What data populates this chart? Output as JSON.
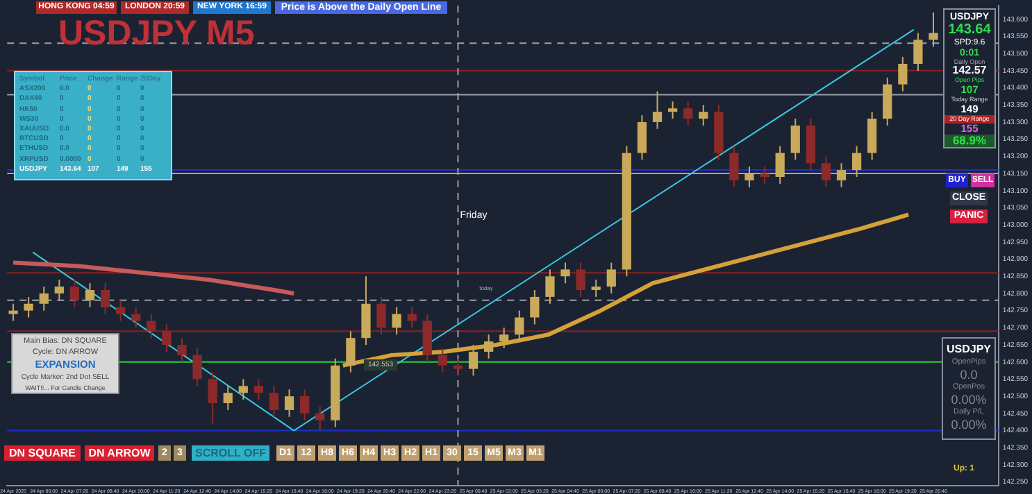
{
  "chart_data": {
    "type": "candlestick",
    "title": "USDJPY M5",
    "x": [
      "2025-04-24T04:40",
      "2025-04-24T05:20",
      "2025-04-24T06:00",
      "2025-04-24T06:40",
      "2025-04-24T07:20",
      "2025-04-24T08:00",
      "2025-04-24T08:40",
      "2025-04-24T09:20",
      "2025-04-24T10:00",
      "2025-04-24T10:40",
      "2025-04-24T11:20",
      "2025-04-24T12:00",
      "2025-04-24T12:40",
      "2025-04-24T13:20",
      "2025-04-24T14:00",
      "2025-04-24T14:40",
      "2025-04-24T15:20",
      "2025-04-24T16:00",
      "2025-04-24T16:40",
      "2025-04-24T17:20",
      "2025-04-24T18:00",
      "2025-04-24T18:40",
      "2025-04-24T19:20",
      "2025-04-24T20:00",
      "2025-04-24T20:40",
      "2025-04-24T21:20",
      "2025-04-24T22:00",
      "2025-04-24T22:40",
      "2025-04-24T23:20",
      "2025-04-25T00:00",
      "2025-04-25T00:40",
      "2025-04-25T01:20",
      "2025-04-25T02:00",
      "2025-04-25T02:40",
      "2025-04-25T03:20",
      "2025-04-25T04:00",
      "2025-04-25T04:40",
      "2025-04-25T05:20",
      "2025-04-25T06:00",
      "2025-04-25T06:40",
      "2025-04-25T07:20",
      "2025-04-25T08:00",
      "2025-04-25T08:40",
      "2025-04-25T09:20",
      "2025-04-25T10:00",
      "2025-04-25T10:40",
      "2025-04-25T11:20",
      "2025-04-25T12:00",
      "2025-04-25T12:40",
      "2025-04-25T13:20",
      "2025-04-25T14:00",
      "2025-04-25T14:40",
      "2025-04-25T15:20",
      "2025-04-25T16:00",
      "2025-04-25T16:40",
      "2025-04-25T17:20",
      "2025-04-25T18:00",
      "2025-04-25T18:40",
      "2025-04-25T19:20",
      "2025-04-25T20:00",
      "2025-04-25T20:40"
    ],
    "ohlc": [
      [
        142.74,
        142.77,
        142.72,
        142.75
      ],
      [
        142.75,
        142.79,
        142.73,
        142.77
      ],
      [
        142.77,
        142.82,
        142.75,
        142.8
      ],
      [
        142.8,
        142.84,
        142.78,
        142.82
      ],
      [
        142.82,
        142.84,
        142.76,
        142.78
      ],
      [
        142.78,
        142.83,
        142.76,
        142.81
      ],
      [
        142.81,
        142.83,
        142.74,
        142.76
      ],
      [
        142.76,
        142.78,
        142.72,
        142.74
      ],
      [
        142.74,
        142.76,
        142.7,
        142.72
      ],
      [
        142.72,
        142.74,
        142.67,
        142.69
      ],
      [
        142.69,
        142.71,
        142.63,
        142.65
      ],
      [
        142.65,
        142.67,
        142.6,
        142.62
      ],
      [
        142.62,
        142.64,
        142.53,
        142.55
      ],
      [
        142.55,
        142.57,
        142.42,
        142.48
      ],
      [
        142.48,
        142.53,
        142.46,
        142.51
      ],
      [
        142.51,
        142.55,
        142.49,
        142.53
      ],
      [
        142.53,
        142.55,
        142.49,
        142.51
      ],
      [
        142.51,
        142.53,
        142.44,
        142.46
      ],
      [
        142.46,
        142.52,
        142.44,
        142.5
      ],
      [
        142.5,
        142.52,
        142.43,
        142.45
      ],
      [
        142.45,
        142.47,
        142.4,
        142.43
      ],
      [
        142.43,
        142.61,
        142.41,
        142.59
      ],
      [
        142.59,
        142.69,
        142.57,
        142.67
      ],
      [
        142.67,
        142.85,
        142.65,
        142.77
      ],
      [
        142.77,
        142.79,
        142.68,
        142.7
      ],
      [
        142.7,
        142.76,
        142.68,
        142.74
      ],
      [
        142.74,
        142.76,
        142.7,
        142.72
      ],
      [
        142.72,
        142.74,
        142.6,
        142.62
      ],
      [
        142.62,
        142.64,
        142.57,
        142.59
      ],
      [
        142.59,
        142.61,
        142.56,
        142.58
      ],
      [
        142.58,
        142.65,
        142.56,
        142.63
      ],
      [
        142.63,
        142.68,
        142.61,
        142.66
      ],
      [
        142.66,
        142.7,
        142.64,
        142.68
      ],
      [
        142.68,
        142.75,
        142.66,
        142.73
      ],
      [
        142.73,
        142.81,
        142.71,
        142.79
      ],
      [
        142.79,
        142.87,
        142.77,
        142.85
      ],
      [
        142.85,
        142.89,
        142.83,
        142.87
      ],
      [
        142.87,
        142.89,
        142.79,
        142.81
      ],
      [
        142.81,
        142.84,
        142.79,
        142.82
      ],
      [
        142.82,
        142.89,
        142.8,
        142.87
      ],
      [
        142.87,
        143.23,
        142.85,
        143.21
      ],
      [
        143.21,
        143.32,
        143.19,
        143.3
      ],
      [
        143.3,
        143.39,
        143.28,
        143.33
      ],
      [
        143.33,
        143.36,
        143.31,
        143.34
      ],
      [
        143.34,
        143.36,
        143.29,
        143.31
      ],
      [
        143.31,
        143.35,
        143.29,
        143.33
      ],
      [
        143.33,
        143.35,
        143.19,
        143.21
      ],
      [
        143.21,
        143.23,
        143.11,
        143.13
      ],
      [
        143.13,
        143.17,
        143.11,
        143.15
      ],
      [
        143.15,
        143.17,
        143.12,
        143.14
      ],
      [
        143.14,
        143.23,
        143.12,
        143.21
      ],
      [
        143.21,
        143.31,
        143.19,
        143.29
      ],
      [
        143.29,
        143.31,
        143.16,
        143.18
      ],
      [
        143.18,
        143.2,
        143.11,
        143.13
      ],
      [
        143.13,
        143.18,
        143.11,
        143.16
      ],
      [
        143.16,
        143.23,
        143.14,
        143.21
      ],
      [
        143.21,
        143.33,
        143.19,
        143.31
      ],
      [
        143.31,
        143.43,
        143.29,
        143.41
      ],
      [
        143.41,
        143.49,
        143.39,
        143.47
      ],
      [
        143.47,
        143.56,
        143.45,
        143.54
      ],
      [
        143.54,
        143.62,
        143.52,
        143.56
      ]
    ],
    "colors": [
      "#c9a95a",
      "#c9a95a",
      "#c9a95a",
      "#c9a95a",
      "#8c2a2a",
      "#c9a95a",
      "#8c2a2a",
      "#8c2a2a",
      "#8c2a2a",
      "#8c2a2a",
      "#8c2a2a",
      "#8c2a2a",
      "#8c2a2a",
      "#8c2a2a",
      "#c9a95a",
      "#c9a95a",
      "#8c2a2a",
      "#8c2a2a",
      "#c9a95a",
      "#8c2a2a",
      "#8c2a2a",
      "#c9a95a",
      "#c9a95a",
      "#c9a95a",
      "#8c2a2a",
      "#c9a95a",
      "#8c2a2a",
      "#8c2a2a",
      "#8c2a2a",
      "#8c2a2a",
      "#c9a95a",
      "#c9a95a",
      "#c9a95a",
      "#c9a95a",
      "#c9a95a",
      "#c9a95a",
      "#c9a95a",
      "#8c2a2a",
      "#c9a95a",
      "#c9a95a",
      "#c9a95a",
      "#c9a95a",
      "#c9a95a",
      "#c9a95a",
      "#8c2a2a",
      "#c9a95a",
      "#8c2a2a",
      "#8c2a2a",
      "#c9a95a",
      "#8c2a2a",
      "#c9a95a",
      "#c9a95a",
      "#8c2a2a",
      "#8c2a2a",
      "#c9a95a",
      "#c9a95a",
      "#c9a95a",
      "#c9a95a",
      "#c9a95a",
      "#c9a95a",
      "#c9a95a"
    ],
    "series": [
      {
        "type": "line",
        "color": "#c85a5a",
        "x": [
          "2025-04-24T04:40",
          "2025-04-24T07:30",
          "2025-04-24T10:20",
          "2025-04-24T13:11",
          "2025-04-24T16:01",
          "2025-04-24T16:52"
        ],
        "values": [
          142.89,
          142.88,
          142.86,
          142.84,
          142.81,
          142.8
        ]
      },
      {
        "type": "line",
        "color": "#d4a23a",
        "x": [
          "2025-04-24T19:00",
          "2025-04-24T21:07",
          "2025-04-24T23:23",
          "2025-04-25T01:40",
          "2025-04-25T03:56",
          "2025-04-25T06:12",
          "2025-04-25T08:28",
          "2025-04-25T10:44",
          "2025-04-25T13:01",
          "2025-04-25T15:17",
          "2025-04-25T17:33",
          "2025-04-25T19:35"
        ],
        "values": [
          142.59,
          142.62,
          142.63,
          142.65,
          142.68,
          142.75,
          142.83,
          142.87,
          142.91,
          142.95,
          142.99,
          143.03
        ]
      },
      {
        "type": "line",
        "color": "#3cc8dc",
        "x": [
          "2025-04-24T05:31",
          "2025-04-24T16:52"
        ],
        "values": [
          142.92,
          142.4
        ]
      },
      {
        "type": "line",
        "color": "#3cc8dc",
        "x": [
          "2025-04-24T16:52",
          "2025-04-25T19:49"
        ],
        "values": [
          142.4,
          143.57
        ]
      }
    ],
    "marker": "none",
    "xlim": [
      "2025-04-24T04:24",
      "2025-04-25T23:30"
    ],
    "xticks": [
      {
        "value": "2025-04-24T04:40",
        "label": "24 Apr 2025"
      },
      {
        "value": "2025-04-24T06:00",
        "label": "24 Apr 06:00"
      },
      {
        "value": "2025-04-24T07:20",
        "label": "24 Apr 07:20"
      },
      {
        "value": "2025-04-24T08:40",
        "label": "24 Apr 08:40"
      },
      {
        "value": "2025-04-24T10:00",
        "label": "24 Apr 10:00"
      },
      {
        "value": "2025-04-24T11:20",
        "label": "24 Apr 11:20"
      },
      {
        "value": "2025-04-24T12:40",
        "label": "24 Apr 12:40"
      },
      {
        "value": "2025-04-24T14:00",
        "label": "24 Apr 14:00"
      },
      {
        "value": "2025-04-24T15:20",
        "label": "24 Apr 15:20"
      },
      {
        "value": "2025-04-24T16:40",
        "label": "24 Apr 16:40"
      },
      {
        "value": "2025-04-24T18:00",
        "label": "24 Apr 18:00"
      },
      {
        "value": "2025-04-24T19:20",
        "label": "24 Apr 19:20"
      },
      {
        "value": "2025-04-24T20:40",
        "label": "24 Apr 20:40"
      },
      {
        "value": "2025-04-24T22:00",
        "label": "24 Apr 22:00"
      },
      {
        "value": "2025-04-24T23:20",
        "label": "24 Apr 23:20"
      },
      {
        "value": "2025-04-25T00:40",
        "label": "25 Apr 00:40"
      },
      {
        "value": "2025-04-25T02:00",
        "label": "25 Apr 02:00"
      },
      {
        "value": "2025-04-25T03:20",
        "label": "25 Apr 03:20"
      },
      {
        "value": "2025-04-25T04:40",
        "label": "25 Apr 04:40"
      },
      {
        "value": "2025-04-25T06:00",
        "label": "25 Apr 06:00"
      },
      {
        "value": "2025-04-25T07:20",
        "label": "25 Apr 07:20"
      },
      {
        "value": "2025-04-25T08:40",
        "label": "25 Apr 08:40"
      },
      {
        "value": "2025-04-25T10:00",
        "label": "25 Apr 10:00"
      },
      {
        "value": "2025-04-25T11:20",
        "label": "25 Apr 11:20"
      },
      {
        "value": "2025-04-25T12:40",
        "label": "25 Apr 12:40"
      },
      {
        "value": "2025-04-25T14:00",
        "label": "25 Apr 14:00"
      },
      {
        "value": "2025-04-25T15:20",
        "label": "25 Apr 15:20"
      },
      {
        "value": "2025-04-25T16:40",
        "label": "25 Apr 16:40"
      },
      {
        "value": "2025-04-25T18:00",
        "label": "25 Apr 18:00"
      },
      {
        "value": "2025-04-25T19:20",
        "label": "25 Apr 19:20"
      },
      {
        "value": "2025-04-25T20:40",
        "label": "25 Apr 20:40"
      }
    ],
    "ylim": [
      142.24,
      143.64
    ],
    "yticks": [
      {
        "value": 142.25,
        "label": "142.250"
      },
      {
        "value": 142.3,
        "label": "142.300"
      },
      {
        "value": 142.35,
        "label": "142.350"
      },
      {
        "value": 142.4,
        "label": "142.400"
      },
      {
        "value": 142.45,
        "label": "142.450"
      },
      {
        "value": 142.5,
        "label": "142.500"
      },
      {
        "value": 142.55,
        "label": "142.550"
      },
      {
        "value": 142.6,
        "label": "142.600"
      },
      {
        "value": 142.65,
        "label": "142.650"
      },
      {
        "value": 142.7,
        "label": "142.700"
      },
      {
        "value": 142.75,
        "label": "142.750"
      },
      {
        "value": 142.8,
        "label": "142.800"
      },
      {
        "value": 142.85,
        "label": "142.850"
      },
      {
        "value": 142.9,
        "label": "142.900"
      },
      {
        "value": 142.95,
        "label": "142.950"
      },
      {
        "value": 143,
        "label": "143.000"
      },
      {
        "value": 143.05,
        "label": "143.050"
      },
      {
        "value": 143.1,
        "label": "143.100"
      },
      {
        "value": 143.15,
        "label": "143.150"
      },
      {
        "value": 143.2,
        "label": "143.200"
      },
      {
        "value": 143.25,
        "label": "143.250"
      },
      {
        "value": 143.3,
        "label": "143.300"
      },
      {
        "value": 143.35,
        "label": "143.350"
      },
      {
        "value": 143.4,
        "label": "143.400"
      },
      {
        "value": 143.45,
        "label": "143.450"
      },
      {
        "value": 143.5,
        "label": "143.500"
      },
      {
        "value": 143.55,
        "label": "143.550"
      },
      {
        "value": 143.6,
        "label": "143.600"
      }
    ],
    "ref_lines": [
      {
        "axis": "y",
        "value": 143.53,
        "color": "#9aa0a8",
        "line_style": "dashed"
      },
      {
        "axis": "y",
        "value": 143.45,
        "color": "#8a2020"
      },
      {
        "axis": "y",
        "value": 143.38,
        "color": "#9aa0a8"
      },
      {
        "axis": "y",
        "value": 143.16,
        "color": "#2030c0"
      },
      {
        "axis": "y",
        "value": 143.15,
        "color": "#e080e0"
      },
      {
        "axis": "y",
        "value": 142.86,
        "color": "#8a2020"
      },
      {
        "axis": "y",
        "value": 142.78,
        "color": "#9aa0a8",
        "line_style": "dashed"
      },
      {
        "axis": "y",
        "value": 142.69,
        "color": "#8a2020"
      },
      {
        "axis": "y",
        "value": 142.6,
        "color": "#30d030"
      },
      {
        "axis": "y",
        "value": 142.4,
        "color": "#2030c0"
      },
      {
        "axis": "x",
        "value": "2025-04-25T00:00",
        "color": "#9aa0a8",
        "line_style": "dashed"
      }
    ],
    "annotations": [
      "HONG KONG 04:59",
      "LONDON 20:59",
      "NEW YORK 16:59",
      "Price is Above the Daily Open Line",
      "Symbol\tPrice\tChange\tRange\t20Day",
      "ASX200\t0.0\t0\t0\t0",
      "DAX40\t0\t0\t0\t0",
      "HK50\t0\t0\t0\t0",
      "WS30\t0\t0\t0\t0",
      "XAUUSD\t0.0\t0\t0\t0",
      "BTCUSD\t0\t0\t0\t0",
      "ETHUSD\t0.0\t0\t0\t0",
      "XRPUSD\t0.0000\t0\t0\t0",
      "USDJPY\t143.64\t107\t149\t155",
      "Main Bias: DN SQUARE",
      "Cycle: DN ARROW",
      "EXPANSION",
      "Cycle Marker: 2nd Dot SELL",
      "WAIT!!... For Candle Change",
      "DN SQUARE",
      "DN ARROW",
      "2",
      "3",
      "SCROLL OFF",
      "D1",
      "12",
      "H8",
      "H6",
      "H4",
      "H3",
      "H2",
      "H1",
      "30",
      "15",
      "M5",
      "M3",
      "M1",
      "USDJPY",
      "143.64",
      "SPD:9.6",
      "0:01",
      "Daily Open",
      "142.57",
      "Open Pips",
      "107",
      "Today Range",
      "149",
      "20 Day Range",
      "155",
      "68.9%",
      "BUY",
      "SELL",
      "CLOSE",
      "PANIC",
      "USDJPY",
      "OpenPips",
      "0.0",
      "OpenPos",
      "0.00%",
      "Daily P/L",
      "0.00%",
      "Up: 1",
      "142.553",
      "Friday",
      "today"
    ]
  }
}
